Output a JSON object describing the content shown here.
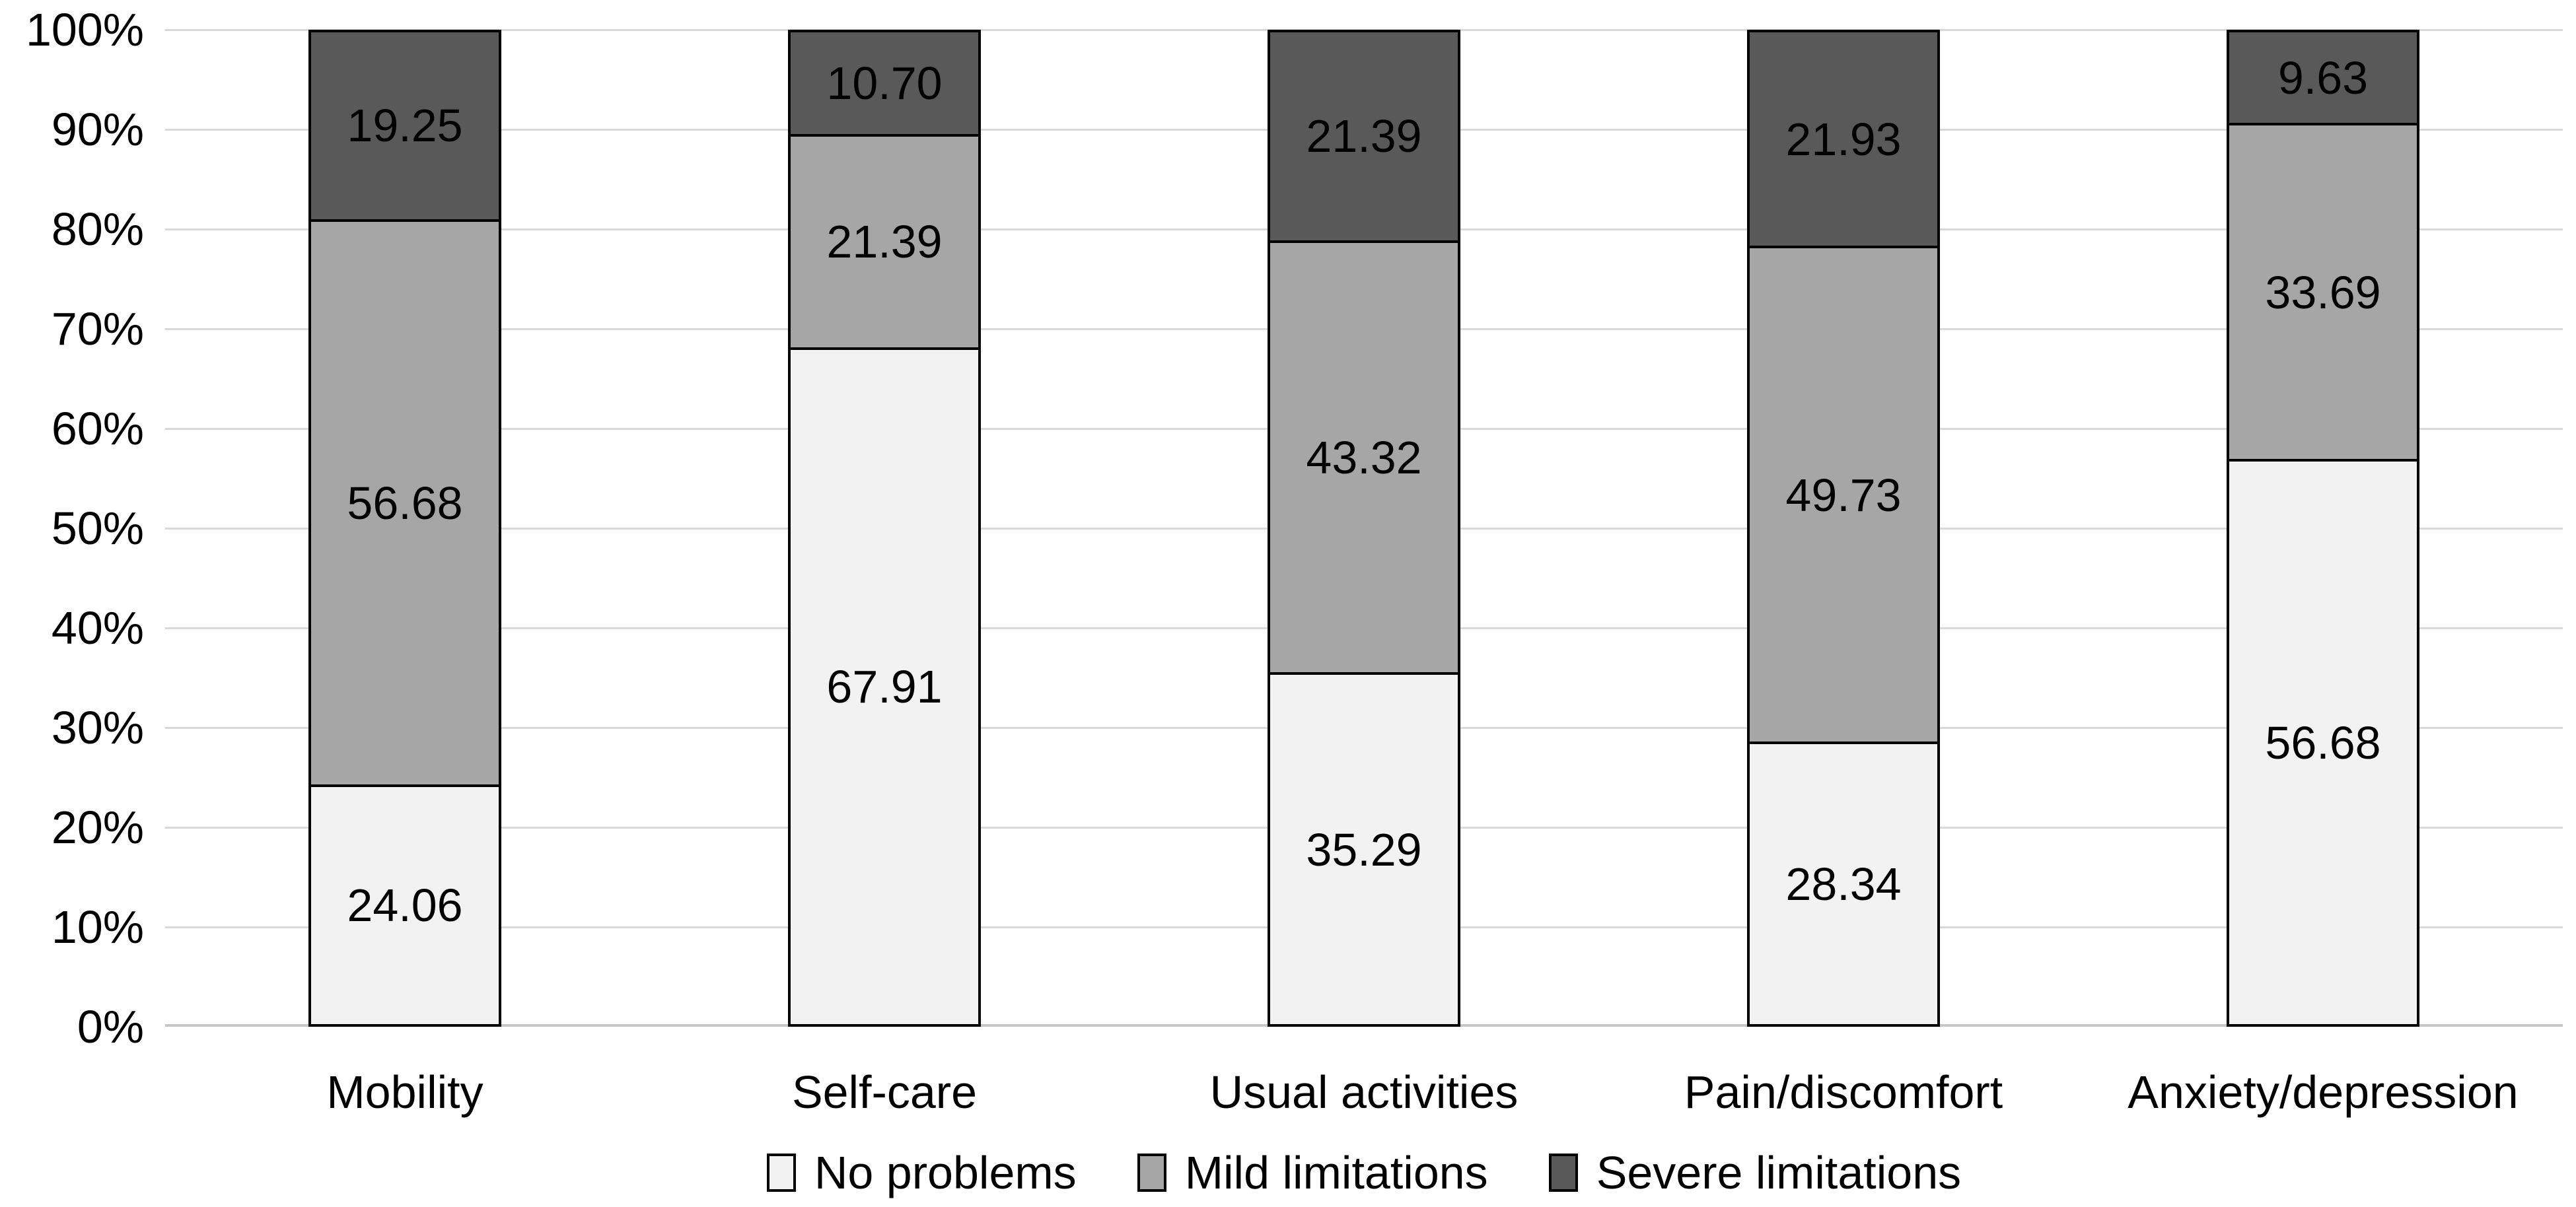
{
  "chart_data": {
    "type": "bar",
    "variant": "stacked-100-percent",
    "title": "",
    "categories": [
      "Mobility",
      "Self-care",
      "Usual activities",
      "Pain/discomfort",
      "Anxiety/depression"
    ],
    "series": [
      {
        "name": "No problems",
        "color": "#f2f2f2",
        "values": [
          24.06,
          67.91,
          35.29,
          28.34,
          56.68
        ],
        "value_labels": [
          "24.06",
          "67.91",
          "35.29",
          "28.34",
          "56.68"
        ]
      },
      {
        "name": "Mild limitations",
        "color": "#a6a6a6",
        "values": [
          56.68,
          21.39,
          43.32,
          49.73,
          33.69
        ],
        "value_labels": [
          "56.68",
          "21.39",
          "43.32",
          "49.73",
          "33.69"
        ]
      },
      {
        "name": "Severe limitations",
        "color": "#595959",
        "values": [
          19.25,
          10.7,
          21.39,
          21.93,
          9.63
        ],
        "value_labels": [
          "19.25",
          "10.70",
          "21.39",
          "21.93",
          "9.63"
        ]
      }
    ],
    "stack_order_top_to_bottom": [
      "Severe limitations",
      "Mild limitations",
      "No problems"
    ],
    "y_axis": {
      "min": 0,
      "max": 100,
      "step": 10,
      "unit": "%",
      "tick_labels": [
        "100%",
        "90%",
        "80%",
        "70%",
        "60%",
        "50%",
        "40%",
        "30%",
        "20%",
        "10%",
        "0%"
      ]
    },
    "x_axis": {
      "label": ""
    },
    "legend": {
      "position": "bottom",
      "entries": [
        "No problems",
        "Mild limitations",
        "Severe limitations"
      ]
    },
    "grid": true,
    "colors": {
      "gridline": "#d9d9d9",
      "axis_line": "#c6c6c6",
      "bar_border": "#000000",
      "text": "#000000",
      "background": "#ffffff"
    }
  }
}
